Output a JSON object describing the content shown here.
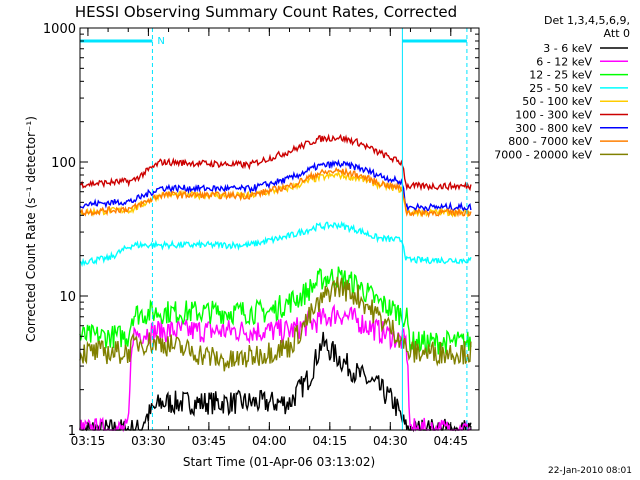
{
  "chart_data": {
    "type": "line",
    "title": "HESSI Observing Summary Count Rates, Corrected",
    "xlabel": "Start Time (01-Apr-06 03:13:02)",
    "ylabel": "Corrected Count Rate (s⁻¹ detector⁻¹)",
    "x_ticks": [
      "03:15",
      "03:30",
      "03:45",
      "04:00",
      "04:15",
      "04:30",
      "04:45"
    ],
    "y_ticks": [
      "1",
      "10",
      "100",
      "1000"
    ],
    "y_scale": "log",
    "ylim": [
      1,
      1000
    ],
    "xlim": [
      "03:13:02",
      "04:52:00"
    ],
    "grid": false,
    "legend": {
      "header": [
        "Det 1,3,4,5,6,9,",
        "Att 0"
      ],
      "placement": "outside-right"
    },
    "footer": "22-Jan-2010 08:01",
    "markers": {
      "night_bar_label": "N",
      "night_intervals": [
        [
          "03:13:02",
          "03:31:00"
        ],
        [
          "04:33:00",
          "04:49:00"
        ]
      ],
      "dashed_lines": [
        "03:31:00",
        "04:49:00"
      ],
      "solid_lines": [
        "04:33:00"
      ]
    },
    "series": [
      {
        "name": "3 - 6 keV",
        "color": "#000000",
        "x": [
          "03:13",
          "03:28",
          "03:29",
          "03:33",
          "04:05",
          "04:10",
          "04:13",
          "04:17",
          "04:22",
          "04:27",
          "04:31",
          "04:34",
          "04:50"
        ],
        "y": [
          1,
          1,
          1.2,
          1.6,
          1.6,
          2.5,
          4.5,
          3.5,
          2.6,
          2.1,
          1.6,
          1,
          1
        ]
      },
      {
        "name": "6 - 12 keV",
        "color": "#ff00ff",
        "x": [
          "03:13",
          "03:25",
          "03:26",
          "03:33",
          "04:05",
          "04:12",
          "04:17",
          "04:22",
          "04:27",
          "04:34",
          "04:35",
          "04:50"
        ],
        "y": [
          1,
          1,
          5.2,
          5.5,
          5.5,
          6.5,
          7.5,
          6.5,
          5.5,
          4.5,
          1,
          1
        ]
      },
      {
        "name": "12 - 25 keV",
        "color": "#00ff00",
        "x": [
          "03:13",
          "03:25",
          "03:26",
          "03:33",
          "04:00",
          "04:08",
          "04:13",
          "04:17",
          "04:22",
          "04:27",
          "04:34",
          "04:35",
          "04:50"
        ],
        "y": [
          5,
          5,
          7.3,
          7.6,
          7.6,
          10,
          13.5,
          14,
          12,
          9,
          7,
          4.5,
          4.5
        ]
      },
      {
        "name": "25 - 50 keV",
        "color": "#00ffff",
        "x": [
          "03:13",
          "03:20",
          "03:26",
          "03:33",
          "03:55",
          "04:05",
          "04:12",
          "04:17",
          "04:22",
          "04:27",
          "04:33",
          "04:34",
          "04:50"
        ],
        "y": [
          18,
          19,
          24,
          24,
          24,
          28,
          33,
          34,
          31,
          27,
          26,
          18.5,
          18.5
        ]
      },
      {
        "name": "50 - 100 keV",
        "color": "#ffcc00",
        "x": [
          "03:13",
          "03:26",
          "03:33",
          "03:55",
          "04:05",
          "04:12",
          "04:17",
          "04:22",
          "04:27",
          "04:33",
          "04:34",
          "04:50"
        ],
        "y": [
          42,
          44,
          57,
          56,
          64,
          76,
          80,
          76,
          68,
          62,
          42,
          42
        ]
      },
      {
        "name": "100 - 300 keV",
        "color": "#cc0000",
        "x": [
          "03:13",
          "03:26",
          "03:33",
          "03:55",
          "04:05",
          "04:12",
          "04:17",
          "04:22",
          "04:27",
          "04:33",
          "04:34",
          "04:50"
        ],
        "y": [
          68,
          72,
          100,
          95,
          120,
          148,
          153,
          140,
          118,
          98,
          66,
          66
        ]
      },
      {
        "name": "300 - 800 keV",
        "color": "#0000ff",
        "x": [
          "03:13",
          "03:26",
          "03:33",
          "03:55",
          "04:05",
          "04:12",
          "04:17",
          "04:22",
          "04:27",
          "04:33",
          "04:34",
          "04:50"
        ],
        "y": [
          48,
          51,
          64,
          63,
          75,
          93,
          97,
          91,
          80,
          70,
          46,
          46
        ]
      },
      {
        "name": "800 - 7000 keV",
        "color": "#ff7f00",
        "x": [
          "03:13",
          "03:26",
          "03:33",
          "03:55",
          "04:05",
          "04:12",
          "04:17",
          "04:22",
          "04:27",
          "04:33",
          "04:34",
          "04:50"
        ],
        "y": [
          42,
          45,
          57,
          56,
          66,
          82,
          86,
          80,
          70,
          63,
          42,
          42
        ]
      },
      {
        "name": "7000 - 20000 keV",
        "color": "#808000",
        "x": [
          "03:13",
          "03:25",
          "03:27",
          "03:33",
          "03:50",
          "04:05",
          "04:10",
          "04:15",
          "04:17",
          "04:22",
          "04:27",
          "04:33",
          "04:34",
          "04:50"
        ],
        "y": [
          3.8,
          3.8,
          4.5,
          4.5,
          3.2,
          4.2,
          7,
          11,
          12,
          10,
          7,
          4.8,
          3.8,
          3.8
        ]
      }
    ]
  }
}
